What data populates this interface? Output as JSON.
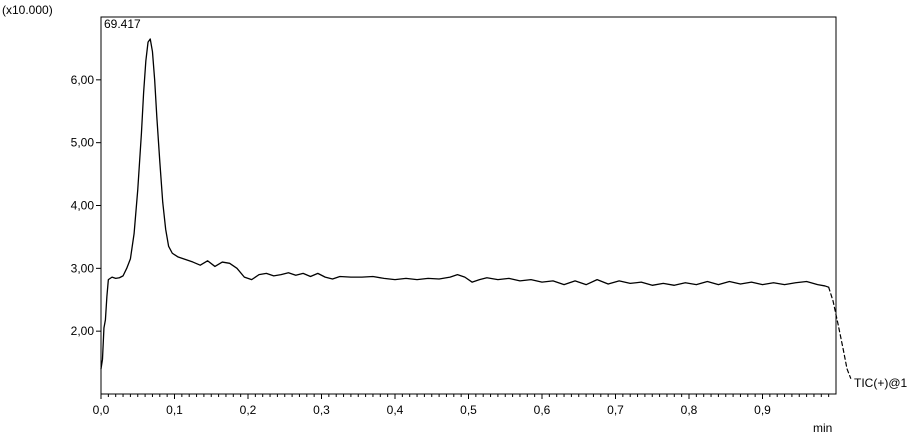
{
  "chart_data": {
    "type": "line",
    "title": "",
    "multiplier_label": "(x10.000)",
    "peak_label": "69.417",
    "xlabel": "min",
    "ylabel": "",
    "xlim": [
      0.0,
      1.0
    ],
    "ylim": [
      1.0,
      7.0
    ],
    "x_ticks": [
      0.0,
      0.1,
      0.2,
      0.3,
      0.4,
      0.5,
      0.6,
      0.7,
      0.8,
      0.9
    ],
    "x_tick_labels": [
      "0,0",
      "0,1",
      "0,2",
      "0,3",
      "0,4",
      "0,5",
      "0,6",
      "0,7",
      "0,8",
      "0,9"
    ],
    "y_ticks": [
      2.0,
      3.0,
      4.0,
      5.0,
      6.0
    ],
    "y_tick_labels": [
      "2,00",
      "3,00",
      "4,00",
      "5,00",
      "6,00"
    ],
    "grid": false,
    "series": [
      {
        "name": "TIC(+)@1",
        "color": "#000000",
        "points": [
          [
            0.0,
            1.4
          ],
          [
            0.002,
            1.55
          ],
          [
            0.004,
            2.05
          ],
          [
            0.006,
            2.18
          ],
          [
            0.008,
            2.55
          ],
          [
            0.01,
            2.82
          ],
          [
            0.015,
            2.86
          ],
          [
            0.02,
            2.84
          ],
          [
            0.025,
            2.85
          ],
          [
            0.03,
            2.88
          ],
          [
            0.035,
            3.0
          ],
          [
            0.04,
            3.15
          ],
          [
            0.045,
            3.55
          ],
          [
            0.05,
            4.25
          ],
          [
            0.055,
            5.15
          ],
          [
            0.058,
            5.8
          ],
          [
            0.061,
            6.3
          ],
          [
            0.064,
            6.6
          ],
          [
            0.067,
            6.65
          ],
          [
            0.07,
            6.45
          ],
          [
            0.073,
            6.0
          ],
          [
            0.076,
            5.4
          ],
          [
            0.08,
            4.7
          ],
          [
            0.084,
            4.05
          ],
          [
            0.088,
            3.62
          ],
          [
            0.092,
            3.35
          ],
          [
            0.097,
            3.24
          ],
          [
            0.105,
            3.18
          ],
          [
            0.115,
            3.14
          ],
          [
            0.125,
            3.1
          ],
          [
            0.135,
            3.05
          ],
          [
            0.145,
            3.12
          ],
          [
            0.155,
            3.03
          ],
          [
            0.165,
            3.1
          ],
          [
            0.175,
            3.08
          ],
          [
            0.185,
            3.0
          ],
          [
            0.195,
            2.86
          ],
          [
            0.205,
            2.82
          ],
          [
            0.215,
            2.9
          ],
          [
            0.225,
            2.92
          ],
          [
            0.235,
            2.88
          ],
          [
            0.245,
            2.9
          ],
          [
            0.255,
            2.93
          ],
          [
            0.265,
            2.89
          ],
          [
            0.275,
            2.92
          ],
          [
            0.285,
            2.87
          ],
          [
            0.295,
            2.92
          ],
          [
            0.305,
            2.86
          ],
          [
            0.315,
            2.83
          ],
          [
            0.325,
            2.87
          ],
          [
            0.34,
            2.86
          ],
          [
            0.355,
            2.86
          ],
          [
            0.37,
            2.87
          ],
          [
            0.385,
            2.84
          ],
          [
            0.4,
            2.82
          ],
          [
            0.415,
            2.84
          ],
          [
            0.43,
            2.82
          ],
          [
            0.445,
            2.84
          ],
          [
            0.46,
            2.83
          ],
          [
            0.475,
            2.86
          ],
          [
            0.485,
            2.9
          ],
          [
            0.495,
            2.86
          ],
          [
            0.505,
            2.78
          ],
          [
            0.515,
            2.82
          ],
          [
            0.525,
            2.85
          ],
          [
            0.54,
            2.82
          ],
          [
            0.555,
            2.84
          ],
          [
            0.57,
            2.8
          ],
          [
            0.585,
            2.82
          ],
          [
            0.6,
            2.78
          ],
          [
            0.615,
            2.8
          ],
          [
            0.63,
            2.74
          ],
          [
            0.645,
            2.8
          ],
          [
            0.66,
            2.74
          ],
          [
            0.675,
            2.82
          ],
          [
            0.69,
            2.75
          ],
          [
            0.705,
            2.8
          ],
          [
            0.72,
            2.76
          ],
          [
            0.735,
            2.78
          ],
          [
            0.75,
            2.73
          ],
          [
            0.765,
            2.76
          ],
          [
            0.78,
            2.73
          ],
          [
            0.795,
            2.77
          ],
          [
            0.81,
            2.74
          ],
          [
            0.825,
            2.79
          ],
          [
            0.84,
            2.74
          ],
          [
            0.855,
            2.79
          ],
          [
            0.87,
            2.75
          ],
          [
            0.885,
            2.78
          ],
          [
            0.9,
            2.74
          ],
          [
            0.915,
            2.77
          ],
          [
            0.93,
            2.74
          ],
          [
            0.945,
            2.77
          ],
          [
            0.96,
            2.79
          ],
          [
            0.975,
            2.74
          ],
          [
            0.985,
            2.72
          ],
          [
            0.99,
            2.7
          ]
        ],
        "tail_points": [
          [
            0.99,
            2.7
          ],
          [
            0.996,
            2.48
          ],
          [
            1.003,
            2.1
          ],
          [
            1.01,
            1.7
          ],
          [
            1.015,
            1.4
          ],
          [
            1.02,
            1.25
          ]
        ]
      }
    ]
  }
}
